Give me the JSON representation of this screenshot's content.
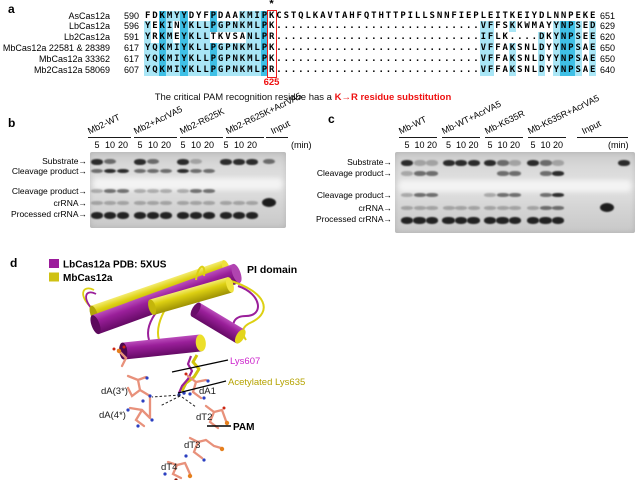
{
  "panel_a": {
    "label": "a",
    "asterisk": "*",
    "position_label": "625",
    "caption_black": "The critical PAM recognition residue has a ",
    "caption_red": "K→R residue substitution",
    "highlight_light": "#a9e6f6",
    "highlight_dark": "#3fc0e6",
    "box_color": "#ee1c1c",
    "rows": [
      {
        "name": "AsCas12a",
        "start": "590",
        "end": "651",
        "seq": "FDKMYYDYFPDAAKMIPKCSTQLKAVTAHFQTHTTPILLSNNFIEPLEITKEIYDLNNPEKE",
        "mask": "..dlld...d...llldr............................................l...l..ddl.l"
      },
      {
        "name": "LbCas12a",
        "start": "596",
        "end": "629",
        "seq": "YEKINYKLLPGPNKMLPK............................VFFSKKWMAYYNPSED",
        "mask": "l.dl.dllldlllllldr............................ll..l.....lddl.l"
      },
      {
        "name": "Lb2Cas12a",
        "start": "591",
        "end": "620",
        "seq": "YRKMEYKLLTKVSANLPR............................IFLK....DKYNPSEE",
        "mask": "l.dl.dlll.....lldr............................ll......l.lddl.l"
      },
      {
        "name": "MbCas12a 22581 & 28389",
        "start": "617",
        "end": "650",
        "seq": "YQKMIYKLLPGPNKMLPK............................VFFAKSNLDYYNPSAE",
        "mask": "lldlldllldlllllldr............................ll..l...l.lddl.l"
      },
      {
        "name": "MbCas12a 33362",
        "start": "617",
        "end": "650",
        "seq": "YQKMIYKLLPGPNKMLPK............................VFFAKSNLDYYNPSAE",
        "mask": "lldlldllldlllllldr............................ll..l...l.lddl.l"
      },
      {
        "name": "Mb2Cas12a 58069",
        "start": "607",
        "end": "640",
        "seq": "YQKMIYKLLPGPNKMLPR............................VFFAKSNLDYYNPSAE",
        "mask": "lldlldllldlllllldr............................ll..l...l.lddl.l"
      }
    ]
  },
  "arrow_glyph": "→",
  "panel_b": {
    "label": "b",
    "groups": [
      {
        "name": "Mb2-WT"
      },
      {
        "name": "Mb2+AcrVA5"
      },
      {
        "name": "Mb2-R625K"
      },
      {
        "name": "Mb2-R625K+AcrVA5"
      }
    ],
    "input_label": "Input",
    "time_points": [
      "5",
      "10",
      "20"
    ],
    "min_label": "(min)",
    "row_labels": [
      "Substrate",
      "Cleavage product",
      "Cleavage product",
      "crRNA",
      "Processed crRNA"
    ],
    "bands": {
      "substrate": [
        3,
        2,
        0,
        3,
        2,
        0,
        3,
        1,
        0,
        3,
        3,
        3,
        2
      ],
      "cleavage_product_1": [
        2,
        3,
        3,
        2,
        2,
        2,
        3,
        2,
        2,
        0,
        0,
        0,
        0
      ],
      "cleavage_product_2": [
        1,
        2,
        2,
        1,
        1,
        1,
        1,
        2,
        2,
        0,
        0,
        0,
        0
      ],
      "crRNA": [
        1,
        1,
        1,
        1,
        1,
        1,
        1,
        1,
        1,
        1,
        1,
        1,
        3
      ],
      "processed_crRNA": [
        3,
        3,
        3,
        3,
        3,
        3,
        3,
        3,
        3,
        3,
        3,
        3,
        0
      ]
    }
  },
  "panel_c": {
    "label": "c",
    "groups": [
      {
        "name": "Mb-WT"
      },
      {
        "name": "Mb-WT+AcrVA5"
      },
      {
        "name": "Mb-K635R"
      },
      {
        "name": "Mb-K635R+AcrVA5"
      }
    ],
    "input_label": "Input",
    "time_points": [
      "5",
      "10",
      "20"
    ],
    "min_label": "(min)",
    "row_labels": [
      "Substrate",
      "Cleavage product",
      "Cleavage product",
      "crRNA",
      "Processed crRNA"
    ],
    "bands": {
      "substrate": [
        3,
        1,
        1,
        3,
        3,
        3,
        3,
        2,
        1,
        3,
        2,
        1,
        0,
        3
      ],
      "cleavage_product_1": [
        1,
        2,
        2,
        0,
        0,
        0,
        0,
        2,
        2,
        0,
        2,
        3,
        0,
        0
      ],
      "cleavage_product_2": [
        1,
        2,
        2,
        0,
        0,
        0,
        1,
        2,
        2,
        0,
        2,
        3,
        0,
        0
      ],
      "crRNA": [
        1,
        1,
        1,
        1,
        1,
        1,
        1,
        1,
        1,
        1,
        2,
        2,
        3,
        0
      ],
      "processed_crRNA": [
        3,
        3,
        3,
        3,
        3,
        3,
        3,
        3,
        3,
        3,
        3,
        3,
        0,
        0
      ]
    }
  },
  "panel_d": {
    "label": "d",
    "legend": [
      {
        "color": "#9b1b9b",
        "label": "LbCas12a PDB: 5XUS"
      },
      {
        "color": "#cfc113",
        "label": "MbCas12a"
      }
    ],
    "pi_domain_label": "PI domain",
    "labels": {
      "lys607": "Lys607",
      "lys635": "Acetylated Lys635",
      "da3": "dA(3*)",
      "da4": "dA(4*)",
      "da1": "dA1",
      "dt2": "dT2",
      "dt3": "dT3",
      "dt4": "dT4",
      "pam": "PAM"
    },
    "colors": {
      "lys607": "#cc22cc",
      "lys635": "#b5a300",
      "purple": "#9a1f9a",
      "yellow": "#d6c81a",
      "dna": "#e8917b"
    }
  }
}
